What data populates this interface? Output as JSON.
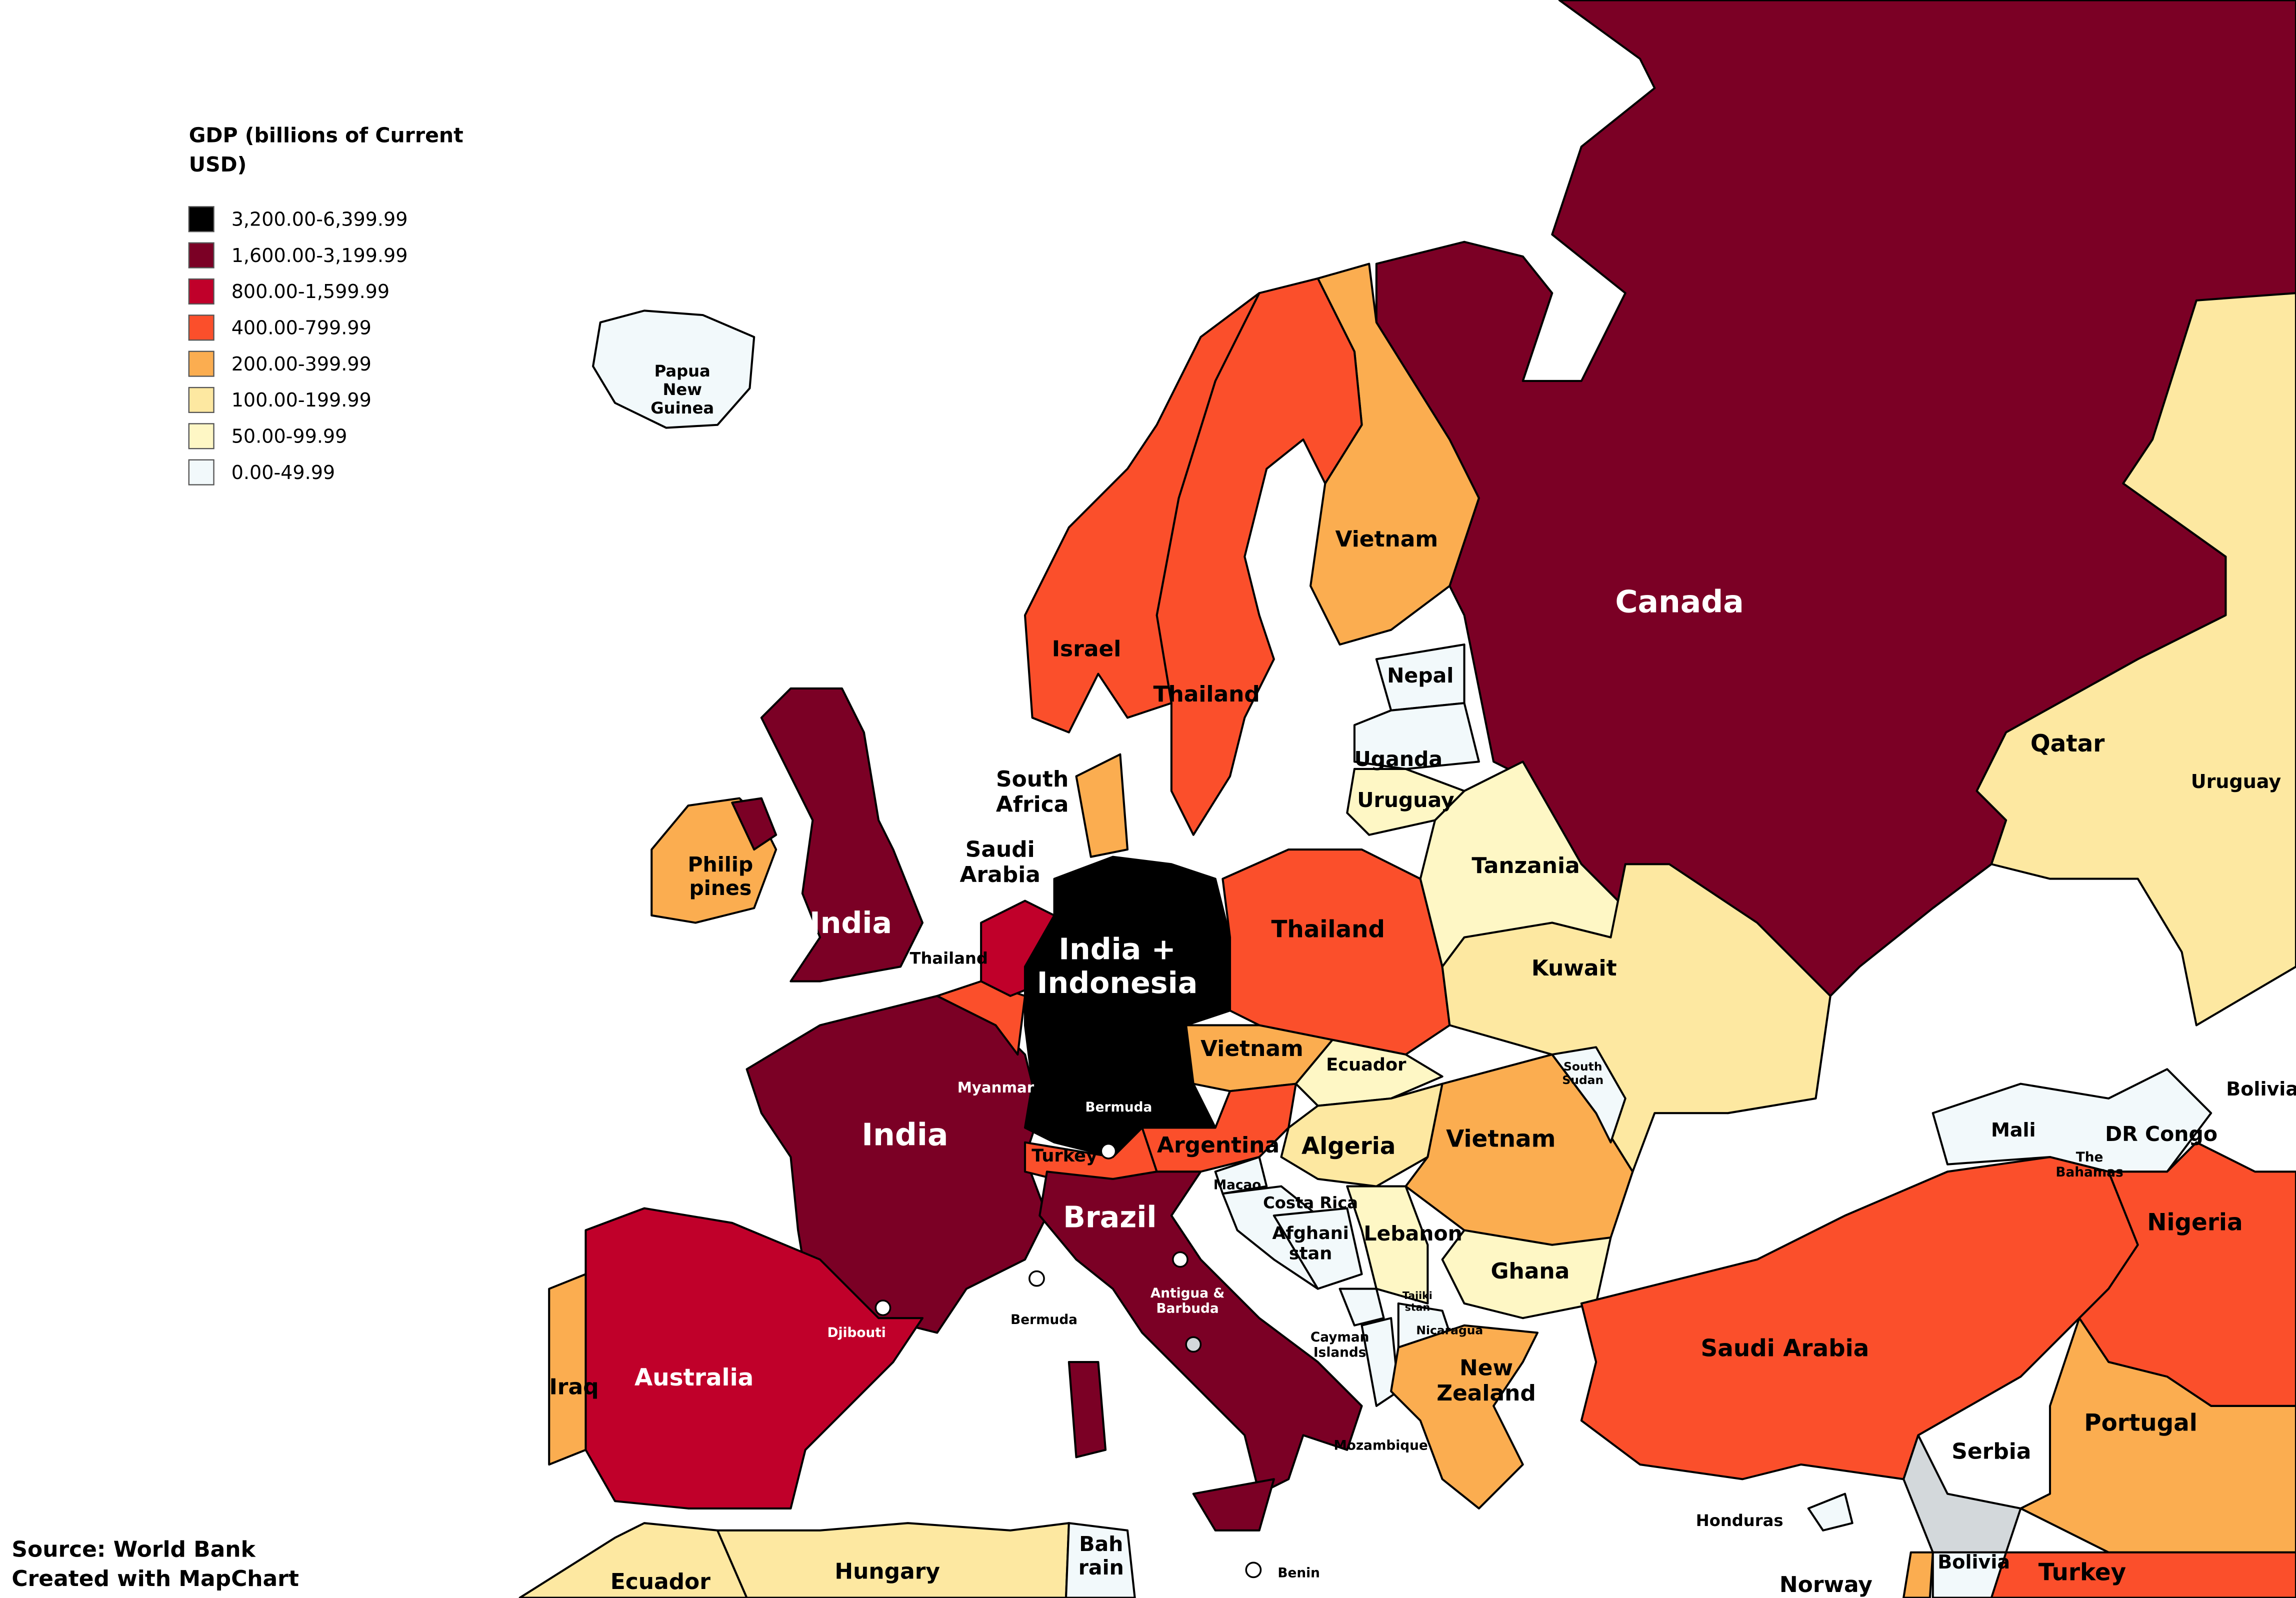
{
  "legend": {
    "title_lines": [
      "GDP (billions of Current",
      "USD)"
    ],
    "items": [
      {
        "label": "3,200.00-6,399.99",
        "color": "#000000"
      },
      {
        "label": "1,600.00-3,199.99",
        "color": "#7b0025"
      },
      {
        "label": "800.00-1,599.99",
        "color": "#c0002a"
      },
      {
        "label": "400.00-799.99",
        "color": "#fb4f2b"
      },
      {
        "label": "200.00-399.99",
        "color": "#fbad50"
      },
      {
        "label": "100.00-199.99",
        "color": "#fde8a1"
      },
      {
        "label": "50.00-99.99",
        "color": "#fef7c5"
      },
      {
        "label": "0.00-49.99",
        "color": "#f2f9fb"
      }
    ]
  },
  "labels": [
    {
      "lines": [
        "Papua",
        "New",
        "Guinea"
      ]
    },
    {
      "lines": [
        "Israel"
      ]
    },
    {
      "lines": [
        "Thailand"
      ]
    },
    {
      "lines": [
        "Vietnam"
      ]
    },
    {
      "lines": [
        "Canada"
      ]
    },
    {
      "lines": [
        "Nepal"
      ]
    },
    {
      "lines": [
        "Uganda"
      ]
    },
    {
      "lines": [
        "Uruguay"
      ]
    },
    {
      "lines": [
        "Tanzania"
      ]
    },
    {
      "lines": [
        "Kuwait"
      ]
    },
    {
      "lines": [
        "Qatar"
      ]
    },
    {
      "lines": [
        "Uruguay"
      ]
    },
    {
      "lines": [
        "India"
      ]
    },
    {
      "lines": [
        "Philip",
        "pines"
      ]
    },
    {
      "lines": [
        "South",
        "Africa"
      ]
    },
    {
      "lines": [
        "Saudi",
        "Arabia"
      ]
    },
    {
      "lines": [
        "Thailand"
      ]
    },
    {
      "lines": [
        "India +",
        "Indonesia"
      ]
    },
    {
      "lines": [
        "Thailand"
      ]
    },
    {
      "lines": [
        "Vietnam"
      ]
    },
    {
      "lines": [
        "Myanmar"
      ]
    },
    {
      "lines": [
        "Bermuda"
      ]
    },
    {
      "lines": [
        "Ecuador"
      ]
    },
    {
      "lines": [
        "South",
        "Sudan"
      ]
    },
    {
      "lines": [
        "Algeria"
      ]
    },
    {
      "lines": [
        "Vietnam"
      ]
    },
    {
      "lines": [
        "Argentina"
      ]
    },
    {
      "lines": [
        "Turkey"
      ]
    },
    {
      "lines": [
        "India"
      ]
    },
    {
      "lines": [
        "Macao"
      ]
    },
    {
      "lines": [
        "Costa Rica"
      ]
    },
    {
      "lines": [
        "Afghani",
        "stan"
      ]
    },
    {
      "lines": [
        "Lebanon"
      ]
    },
    {
      "lines": [
        "Ghana"
      ]
    },
    {
      "lines": [
        "Brazil"
      ]
    },
    {
      "lines": [
        "Antigua &",
        "Barbuda"
      ]
    },
    {
      "lines": [
        "Bermuda"
      ]
    },
    {
      "lines": [
        "Djibouti"
      ]
    },
    {
      "lines": [
        "Tajiki",
        "stan"
      ]
    },
    {
      "lines": [
        "Nicaragua"
      ]
    },
    {
      "lines": [
        "Cayman",
        "Islands"
      ]
    },
    {
      "lines": [
        "New",
        "Zealand"
      ]
    },
    {
      "lines": [
        "Mozambique"
      ]
    },
    {
      "lines": [
        "Saudi Arabia"
      ]
    },
    {
      "lines": [
        "Australia"
      ]
    },
    {
      "lines": [
        "Iraq"
      ]
    },
    {
      "lines": [
        "Portugal"
      ]
    },
    {
      "lines": [
        "Serbia"
      ]
    },
    {
      "lines": [
        "Honduras"
      ]
    },
    {
      "lines": [
        "Benin"
      ]
    },
    {
      "lines": [
        "Bah",
        "rain"
      ]
    },
    {
      "lines": [
        "Hungary"
      ]
    },
    {
      "lines": [
        "Ecuador"
      ]
    },
    {
      "lines": [
        "Norway"
      ]
    },
    {
      "lines": [
        "Bolivia"
      ]
    },
    {
      "lines": [
        "Turkey"
      ]
    },
    {
      "lines": [
        "Nigeria"
      ]
    },
    {
      "lines": [
        "Mali"
      ]
    },
    {
      "lines": [
        "The",
        "Bahamas"
      ]
    },
    {
      "lines": [
        "DR Congo"
      ]
    },
    {
      "lines": [
        "Bolivia"
      ]
    }
  ],
  "source": [
    "Source: World Bank",
    "Created with MapChart"
  ]
}
